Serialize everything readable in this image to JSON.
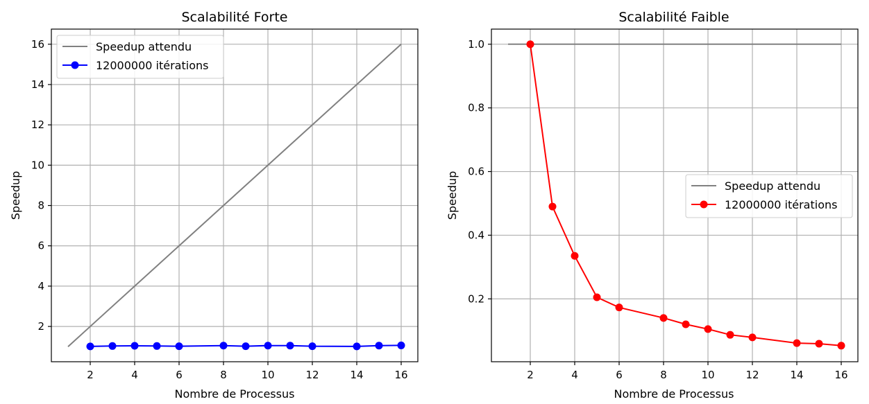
{
  "chart_data": [
    {
      "type": "line",
      "title": "Scalabilité Forte",
      "xlabel": "Nombre de Processus",
      "ylabel": "Speedup",
      "xlim": [
        0.25,
        16.75
      ],
      "ylim": [
        0.25,
        16.75
      ],
      "xticks": [
        2,
        4,
        6,
        8,
        10,
        12,
        14,
        16
      ],
      "yticks": [
        2,
        4,
        6,
        8,
        10,
        12,
        14,
        16
      ],
      "grid": true,
      "legend_position": "upper left",
      "series": [
        {
          "name": "Speedup attendu",
          "color": "#808080",
          "marker": false,
          "x": [
            1,
            16
          ],
          "y": [
            1,
            16
          ]
        },
        {
          "name": "12000000 itérations",
          "color": "#0000ff",
          "marker": true,
          "x": [
            2,
            3,
            4,
            5,
            6,
            8,
            9,
            10,
            11,
            12,
            14,
            15,
            16
          ],
          "y": [
            1.01,
            1.03,
            1.04,
            1.03,
            1.02,
            1.05,
            1.02,
            1.05,
            1.05,
            1.02,
            1.01,
            1.05,
            1.06
          ]
        }
      ]
    },
    {
      "type": "line",
      "title": "Scalabilité Faible",
      "xlabel": "Nombre de Processus",
      "ylabel": "Speedup",
      "xlim": [
        0.25,
        16.75
      ],
      "ylim": [
        0.0025,
        1.0475
      ],
      "xticks": [
        2,
        4,
        6,
        8,
        10,
        12,
        14,
        16
      ],
      "yticks": [
        0.2,
        0.4,
        0.6,
        0.8,
        1.0
      ],
      "ytick_labels": [
        "0.2",
        "0.4",
        "0.6",
        "0.8",
        "1.0"
      ],
      "grid": true,
      "legend_position": "center right",
      "series": [
        {
          "name": "Speedup attendu",
          "color": "#808080",
          "marker": false,
          "x": [
            1,
            16
          ],
          "y": [
            1.0,
            1.0
          ]
        },
        {
          "name": "12000000 itérations",
          "color": "#ff0000",
          "marker": true,
          "x": [
            2,
            3,
            4,
            5,
            6,
            8,
            9,
            10,
            11,
            12,
            14,
            15,
            16
          ],
          "y": [
            1.0,
            0.49,
            0.335,
            0.205,
            0.173,
            0.14,
            0.12,
            0.105,
            0.087,
            0.079,
            0.061,
            0.059,
            0.053
          ]
        }
      ]
    }
  ]
}
